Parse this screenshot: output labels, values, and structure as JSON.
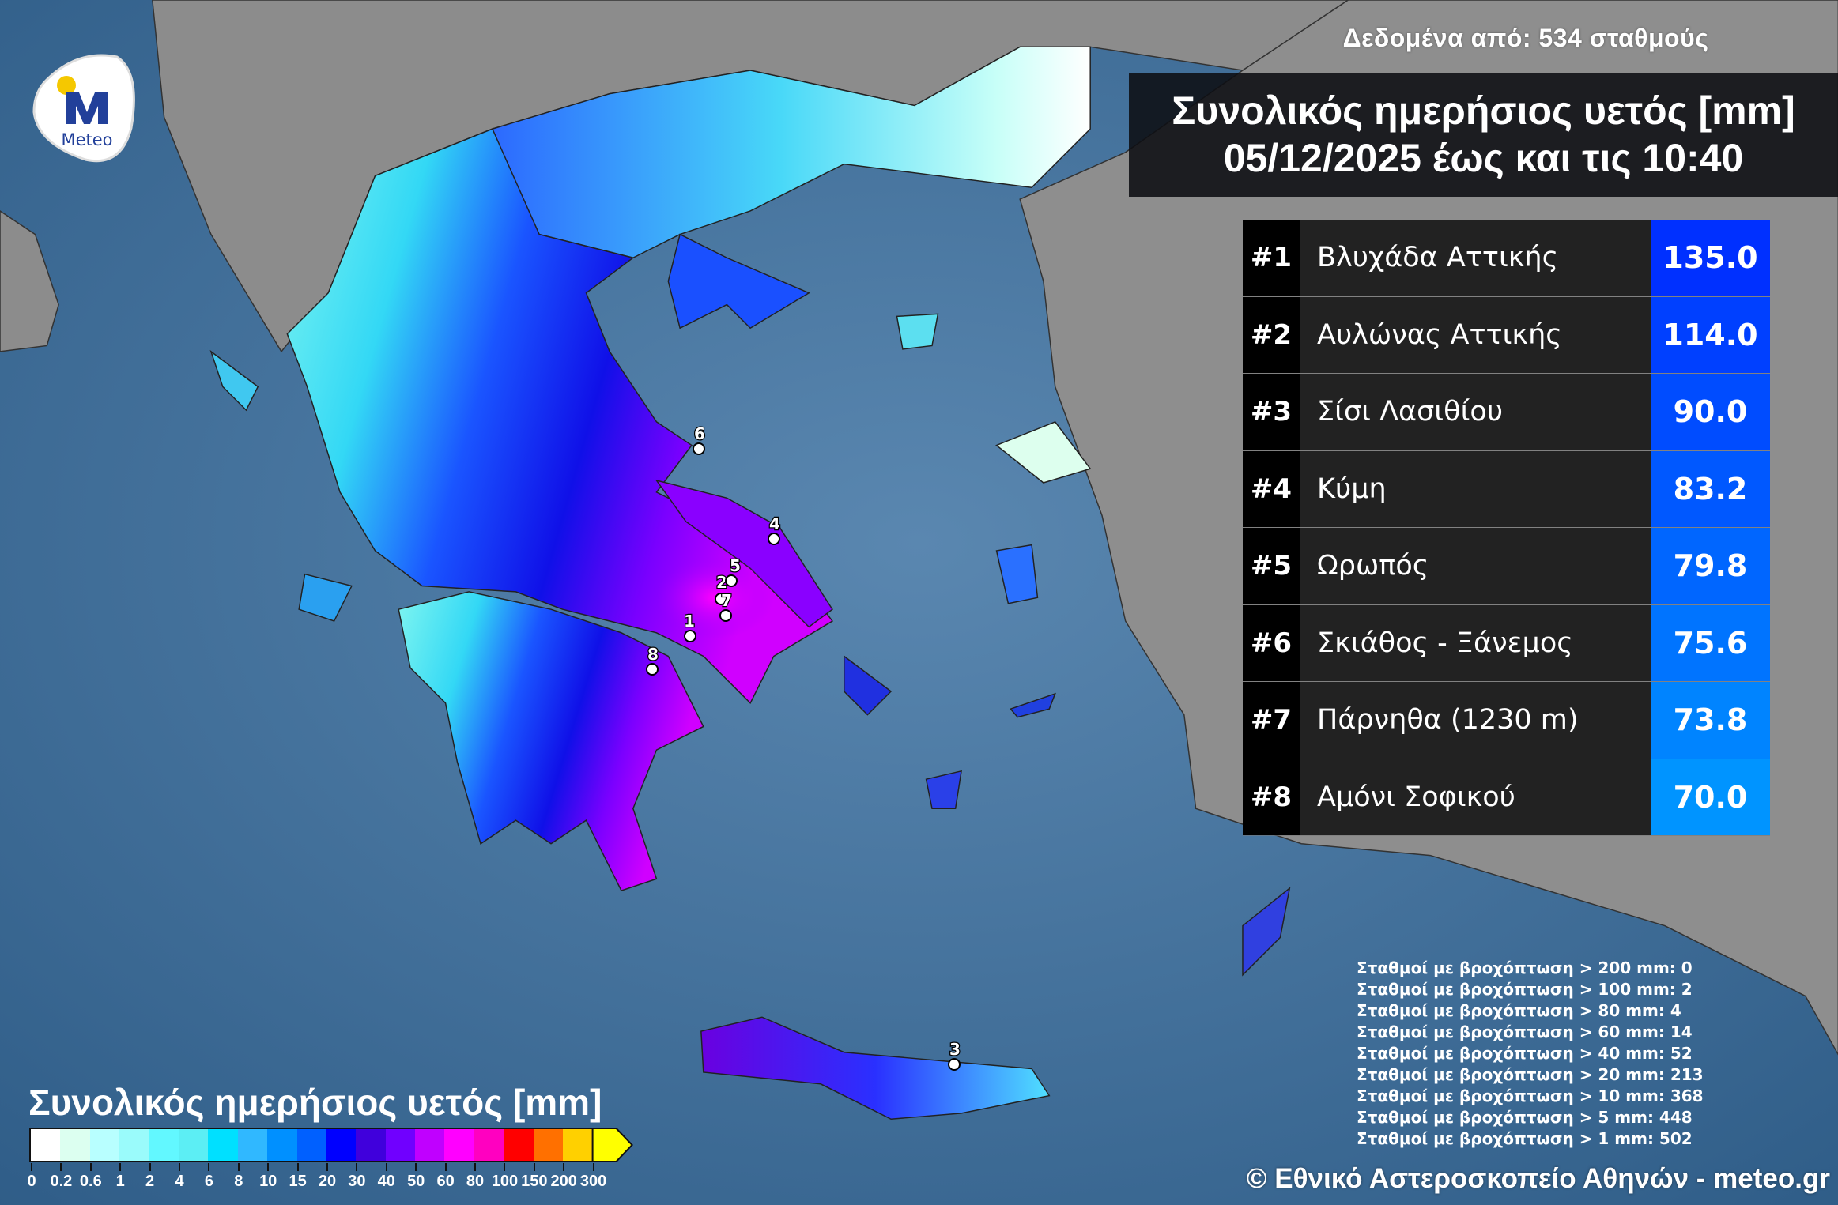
{
  "logo": {
    "text": "Meteo",
    "brand_color": "#22409a",
    "dot_color": "#f5c800"
  },
  "header": {
    "source": "Δεδομένα από: 534 σταθμούς",
    "title_line1": "Συνολικός ημερήσιος υετός [mm]",
    "title_line2": "05/12/2025 έως και τις 10:40"
  },
  "ranking": [
    {
      "rank": "#1",
      "name": "Βλυχάδα Αττικής",
      "value": "135.0",
      "color": "#0030ff"
    },
    {
      "rank": "#2",
      "name": "Αυλώνας Αττικής",
      "value": "114.0",
      "color": "#0040ff"
    },
    {
      "rank": "#3",
      "name": "Σίσι Λασιθίου",
      "value": "90.0",
      "color": "#004cff"
    },
    {
      "rank": "#4",
      "name": "Κύμη",
      "value": "83.2",
      "color": "#0058ff"
    },
    {
      "rank": "#5",
      "name": "Ωρωπός",
      "value": "79.8",
      "color": "#0066ff"
    },
    {
      "rank": "#6",
      "name": "Σκιάθος - Ξάνεμος",
      "value": "75.6",
      "color": "#0074ff"
    },
    {
      "rank": "#7",
      "name": "Πάρνηθα (1230 m)",
      "value": "73.8",
      "color": "#0084ff"
    },
    {
      "rank": "#8",
      "name": "Αμόνι Σοφικού",
      "value": "70.0",
      "color": "#0094ff"
    }
  ],
  "markers": [
    "1",
    "2",
    "3",
    "4",
    "5",
    "6",
    "7",
    "8"
  ],
  "stats": [
    "Σταθμοί με βροχόπτωση > 200 mm: 0",
    "Σταθμοί με βροχόπτωση > 100 mm: 2",
    "Σταθμοί με βροχόπτωση > 80 mm: 4",
    "Σταθμοί με βροχόπτωση > 60 mm: 14",
    "Σταθμοί με βροχόπτωση > 40 mm: 52",
    "Σταθμοί με βροχόπτωση > 20 mm: 213",
    "Σταθμοί με βροχόπτωση > 10 mm: 368",
    "Σταθμοί με βροχόπτωση > 5 mm: 448",
    "Σταθμοί με βροχόπτωση > 1 mm: 502"
  ],
  "legend": {
    "title": "Συνολικός ημερήσιος υετός [mm]",
    "labels": [
      "0",
      "0.2",
      "0.6",
      "1",
      "2",
      "4",
      "6",
      "8",
      "10",
      "15",
      "20",
      "30",
      "40",
      "50",
      "60",
      "80",
      "100",
      "150",
      "200",
      "300"
    ],
    "colors": [
      "#ffffff",
      "#dcfff0",
      "#b8ffff",
      "#9afbfb",
      "#62f8ff",
      "#5ceef4",
      "#00e0ff",
      "#30b8ff",
      "#0090ff",
      "#0060ff",
      "#0000ff",
      "#4000dc",
      "#7000ff",
      "#c000ff",
      "#ff00ff",
      "#ff00c0",
      "#ff0000",
      "#ff7000",
      "#ffd000"
    ],
    "arrow_color": "#ffff00"
  },
  "copyright": "© Εθνικό Αστεροσκοπείο Αθηνών - meteo.gr"
}
